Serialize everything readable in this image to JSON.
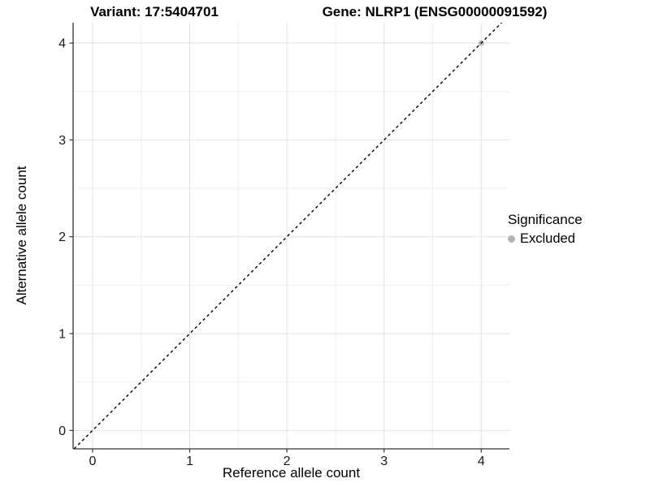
{
  "chart_data": {
    "type": "scatter",
    "title_left": "Variant: 17:5404701",
    "title_right": "Gene: NLRP1 (ENSG00000091592)",
    "xlabel": "Reference allele count",
    "ylabel": "Alternative allele count",
    "x_ticks": [
      0,
      1,
      2,
      3,
      4
    ],
    "y_ticks": [
      0,
      1,
      2,
      3,
      4
    ],
    "xlim": [
      -0.2,
      4.29
    ],
    "ylim": [
      -0.19,
      4.21
    ],
    "grid": {
      "major": true,
      "minor": true
    },
    "reference_line": {
      "type": "identity y=x",
      "style": "dashed",
      "color": "#000000"
    },
    "series": [
      {
        "name": "Excluded",
        "color": "#b4b4b4",
        "points": [
          [
            4,
            4
          ]
        ]
      }
    ],
    "legend": {
      "title": "Significance",
      "position": "right",
      "items": [
        {
          "label": "Excluded",
          "color": "#b4b4b4"
        }
      ]
    },
    "colors": {
      "grid_major": "#e2e2e2",
      "grid_minor": "#f0f0f0",
      "axis_line": "#333333",
      "tick_text": "#1a1a1a"
    }
  }
}
